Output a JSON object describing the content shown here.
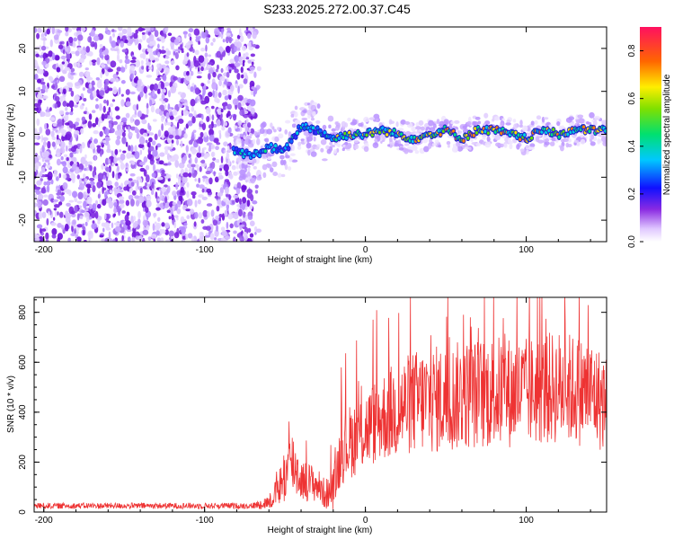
{
  "title": "S233.2025.272.00.37.C45",
  "chart_data": [
    {
      "type": "heatmap",
      "title": "S233.2025.272.00.37.C45",
      "xlabel": "Height of straight line (km)",
      "ylabel": "Frequency (Hz)",
      "xlim": [
        -206,
        150
      ],
      "ylim": [
        -25,
        25
      ],
      "xticks": [
        -200,
        -100,
        0,
        100
      ],
      "yticks": [
        -20,
        -10,
        0,
        10,
        20
      ],
      "noise_region_x": [
        -206,
        -70
      ],
      "signal_track": {
        "x": [
          -80,
          -70,
          -60,
          -50,
          -40,
          -30,
          -20,
          -10,
          0,
          10,
          20,
          30,
          40,
          50,
          60,
          70,
          80,
          90,
          100,
          110,
          120,
          130,
          140,
          150
        ],
        "freq": [
          -4,
          -5,
          -3,
          -4,
          2,
          1,
          -1,
          0,
          0,
          1,
          0,
          -1,
          0,
          1,
          -1,
          1,
          1,
          0,
          -1,
          1,
          0,
          1,
          1,
          1
        ]
      },
      "colorbar": {
        "label": "Normalized spectral amplitude",
        "range": [
          0.0,
          0.9
        ],
        "ticks": [
          "0.0",
          "0.2",
          "0.4",
          "0.6",
          "0.8"
        ]
      }
    },
    {
      "type": "line",
      "xlabel": "Height of straight line (km)",
      "ylabel": "SNR (10 * v/v)",
      "xlim": [
        -206,
        150
      ],
      "ylim": [
        0,
        860
      ],
      "xticks": [
        -200,
        -100,
        0,
        100
      ],
      "yticks": [
        0,
        200,
        400,
        600,
        800
      ],
      "color": "#ee3333",
      "envelope": {
        "x": [
          -206,
          -100,
          -70,
          -60,
          -55,
          -50,
          -45,
          -40,
          -35,
          -30,
          -25,
          -20,
          -15,
          -10,
          0,
          10,
          20,
          30,
          40,
          50,
          60,
          80,
          100,
          120,
          140,
          150
        ],
        "mean": [
          25,
          25,
          25,
          40,
          80,
          150,
          200,
          130,
          120,
          110,
          70,
          90,
          250,
          280,
          330,
          380,
          410,
          440,
          450,
          450,
          470,
          480,
          480,
          500,
          480,
          430
        ],
        "spread": [
          12,
          12,
          12,
          30,
          60,
          120,
          140,
          80,
          80,
          70,
          60,
          80,
          140,
          150,
          160,
          180,
          200,
          210,
          220,
          220,
          220,
          230,
          220,
          230,
          220,
          200
        ]
      }
    }
  ]
}
